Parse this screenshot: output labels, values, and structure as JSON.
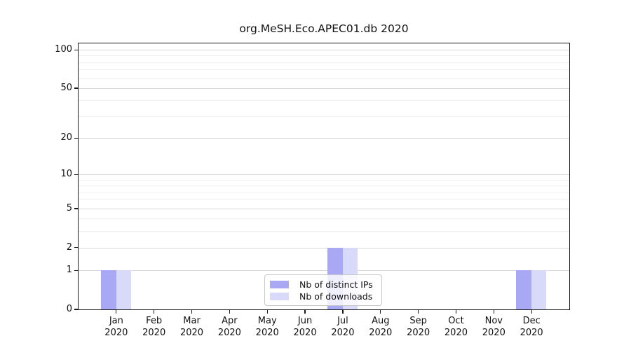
{
  "chart_data": {
    "type": "bar",
    "title": "org.MeSH.Eco.APEC01.db 2020",
    "months": [
      "Jan",
      "Feb",
      "Mar",
      "Apr",
      "May",
      "Jun",
      "Jul",
      "Aug",
      "Sep",
      "Oct",
      "Nov",
      "Dec"
    ],
    "year": "2020",
    "series": [
      {
        "name": "Nb of distinct IPs",
        "color": "#a8a8f5",
        "values": [
          1,
          0,
          0,
          0,
          0,
          0,
          2,
          0,
          0,
          0,
          0,
          1
        ]
      },
      {
        "name": "Nb of downloads",
        "color": "#d9d9fa",
        "values": [
          1,
          0,
          0,
          0,
          0,
          0,
          2,
          0,
          0,
          0,
          0,
          1
        ]
      }
    ],
    "yticks": [
      0,
      1,
      2,
      5,
      10,
      20,
      50,
      100
    ],
    "minor_yticks": [
      3,
      4,
      6,
      7,
      8,
      9,
      30,
      40,
      60,
      70,
      80,
      90
    ],
    "scale": "log1p",
    "ylim": [
      0,
      110
    ],
    "grid": "horizontal",
    "legend_position": "bottom-center",
    "colors": {
      "major_grid": "#d8d8d8",
      "minor_grid": "#f0f0f0",
      "spine": "#1a1a1a"
    }
  }
}
